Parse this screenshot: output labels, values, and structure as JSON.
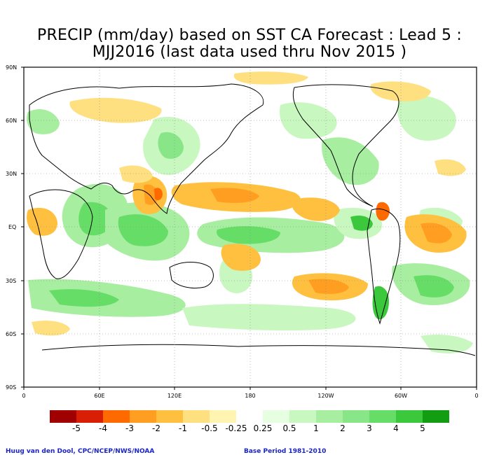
{
  "title": {
    "line1": "PRECIP (mm/day) based on SST CA Forecast : Lead 5 :",
    "line2": "MJJ2016 (last data used thru Nov 2015 )"
  },
  "map": {
    "lat_ticks": [
      "90N",
      "60N",
      "30N",
      "EQ",
      "30S",
      "60S",
      "90S"
    ],
    "lon_ticks": [
      "0",
      "60E",
      "120E",
      "180",
      "120W",
      "60W",
      "0"
    ]
  },
  "legend": {
    "colors": [
      "#a00000",
      "#d81e05",
      "#ff6a00",
      "#ff9e20",
      "#ffc040",
      "#ffe080",
      "#fff5b0",
      "#ffffff",
      "#e6ffe0",
      "#c8f7c0",
      "#a8eea0",
      "#88e688",
      "#66dd66",
      "#3cc83c",
      "#139d13"
    ],
    "labels": [
      "-5",
      "-4",
      "-3",
      "-2",
      "-1",
      "-0.5",
      "-0.25",
      "0.25",
      "0.5",
      "1",
      "2",
      "3",
      "4",
      "5"
    ]
  },
  "footer": {
    "credit": "Huug van den Dool, CPC/NCEP/NWS/NOAA",
    "base_period": "Base Period 1981-2010"
  }
}
